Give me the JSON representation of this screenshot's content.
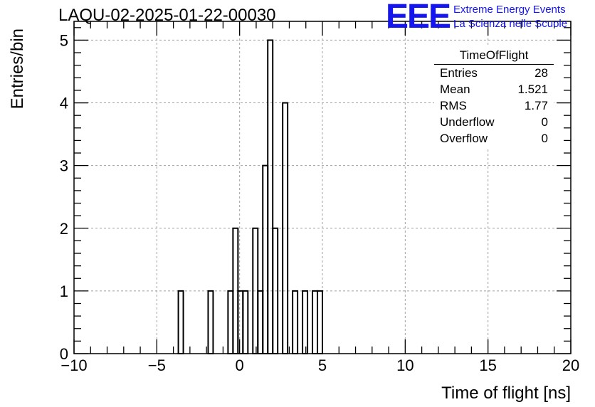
{
  "title": "LAQU-02-2025-01-22-00030",
  "logo": {
    "mark": "EEE",
    "line1": "Extreme Energy Events",
    "line2": "La Scienza nelle Scuole",
    "color": "#1515ee"
  },
  "stats_box": {
    "title": "TimeOfFlight",
    "rows": [
      {
        "label": "Entries",
        "value": "28"
      },
      {
        "label": "Mean",
        "value": "1.521"
      },
      {
        "label": "RMS",
        "value": "1.77"
      },
      {
        "label": "Underflow",
        "value": "0"
      },
      {
        "label": "Overflow",
        "value": "0"
      }
    ]
  },
  "chart_data": {
    "type": "bar",
    "histogram": true,
    "xlabel": "Time of flight [ns]",
    "ylabel": "Entries/bin",
    "xlim": [
      -10,
      20
    ],
    "ylim": [
      0,
      5.3
    ],
    "x_ticks": [
      -10,
      -5,
      0,
      5,
      10,
      15,
      20
    ],
    "x_tick_labels": [
      "−10",
      "−5",
      "0",
      "5",
      "10",
      "15",
      "20"
    ],
    "y_ticks": [
      0,
      1,
      2,
      3,
      4,
      5
    ],
    "y_tick_labels": [
      "0",
      "1",
      "2",
      "3",
      "4",
      "5"
    ],
    "grid": true,
    "bin_width": 0.3,
    "bins": [
      {
        "x0": -3.7,
        "value": 1
      },
      {
        "x0": -1.9,
        "value": 1
      },
      {
        "x0": -0.7,
        "value": 1
      },
      {
        "x0": -0.4,
        "value": 2
      },
      {
        "x0": -0.1,
        "value": 1
      },
      {
        "x0": 0.2,
        "value": 1
      },
      {
        "x0": 0.8,
        "value": 2
      },
      {
        "x0": 1.1,
        "value": 1
      },
      {
        "x0": 1.4,
        "value": 3
      },
      {
        "x0": 1.7,
        "value": 5
      },
      {
        "x0": 2.0,
        "value": 2
      },
      {
        "x0": 2.6,
        "value": 4
      },
      {
        "x0": 3.2,
        "value": 1
      },
      {
        "x0": 3.8,
        "value": 1
      },
      {
        "x0": 4.4,
        "value": 1
      },
      {
        "x0": 4.7,
        "value": 1
      }
    ],
    "line_color": "#000000",
    "grid_color": "#a0a0a0"
  }
}
